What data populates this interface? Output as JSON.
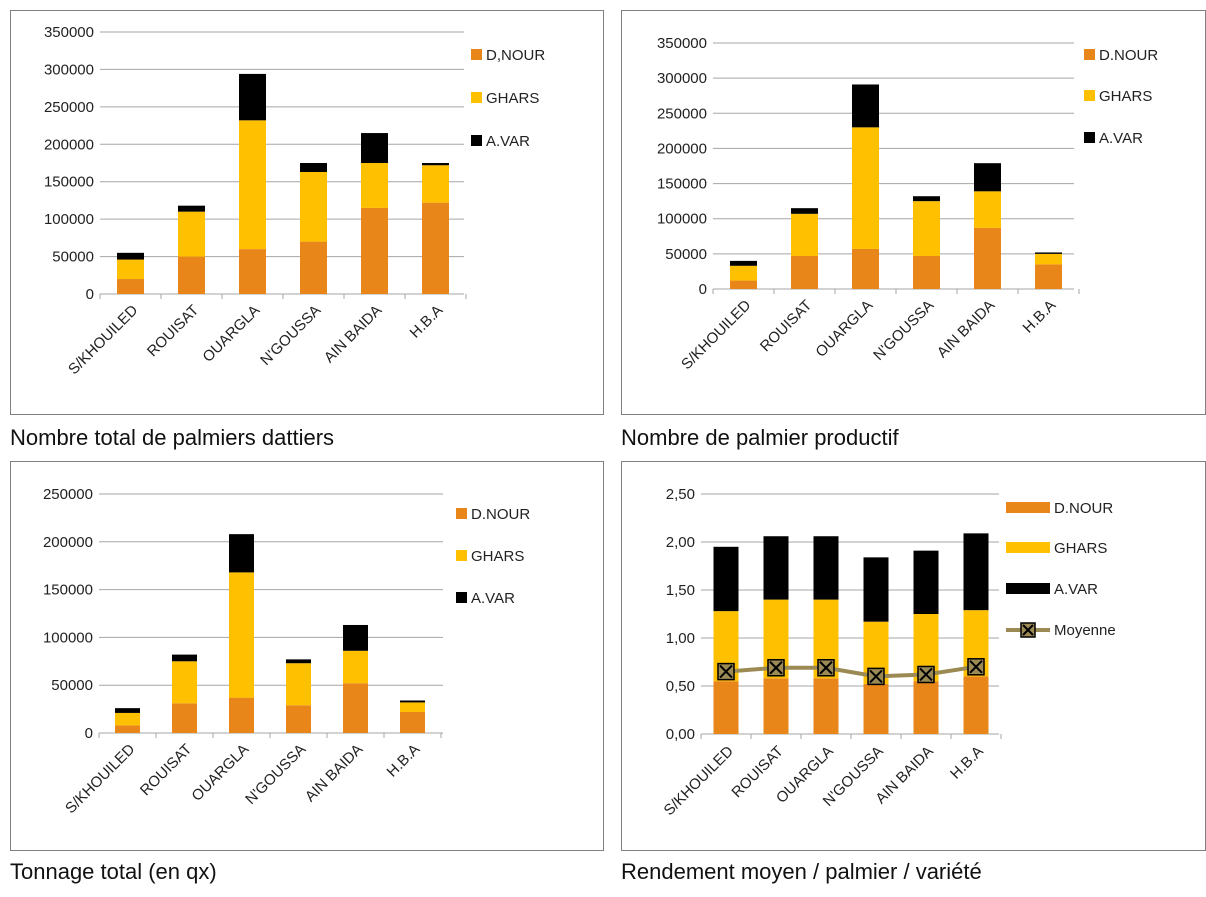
{
  "colors": {
    "D": "#E8861A",
    "G": "#FFC000",
    "A": "#000000",
    "line": "#9C8A55",
    "grid": "#A6A6A6"
  },
  "chart_data": [
    {
      "type": "bar",
      "stacked": true,
      "caption": "Nombre total de palmiers dattiers",
      "categories": [
        "S/KHOUILED",
        "ROUISAT",
        "OUARGLA",
        "N'GOUSSA",
        "AIN BAIDA",
        "H.B.A"
      ],
      "ylim": [
        0,
        350000
      ],
      "yticks": [
        "0",
        "50000",
        "100000",
        "150000",
        "200000",
        "250000",
        "300000",
        "350000"
      ],
      "legend_position": "right",
      "series": [
        {
          "name": "D,NOUR",
          "values": [
            20000,
            50000,
            60000,
            70000,
            115000,
            122000
          ]
        },
        {
          "name": "GHARS",
          "values": [
            26000,
            60000,
            172000,
            93000,
            60000,
            50000
          ]
        },
        {
          "name": "A.VAR",
          "values": [
            9000,
            8000,
            62000,
            12000,
            40000,
            3000
          ]
        }
      ]
    },
    {
      "type": "bar",
      "stacked": true,
      "caption": "Nombre de palmier productif",
      "categories": [
        "S/KHOUILED",
        "ROUISAT",
        "OUARGLA",
        "N'GOUSSA",
        "AIN BAIDA",
        "H.B.A"
      ],
      "ylim": [
        0,
        350000
      ],
      "yticks": [
        "0",
        "50000",
        "100000",
        "150000",
        "200000",
        "250000",
        "300000",
        "350000"
      ],
      "legend_position": "right",
      "series": [
        {
          "name": "D.NOUR",
          "values": [
            12000,
            47000,
            57000,
            47000,
            87000,
            35000
          ]
        },
        {
          "name": "GHARS",
          "values": [
            21000,
            60000,
            173000,
            78000,
            52000,
            15000
          ]
        },
        {
          "name": "A.VAR",
          "values": [
            7000,
            8000,
            61000,
            7000,
            40000,
            2000
          ]
        }
      ]
    },
    {
      "type": "bar",
      "stacked": true,
      "caption": "Tonnage total (en qx)",
      "categories": [
        "S/KHOUILED",
        "ROUISAT",
        "OUARGLA",
        "N'GOUSSA",
        "AIN BAIDA",
        "H.B.A"
      ],
      "ylim": [
        0,
        250000
      ],
      "yticks": [
        "0",
        "50000",
        "100000",
        "150000",
        "200000",
        "250000"
      ],
      "legend_position": "right",
      "series": [
        {
          "name": "D.NOUR",
          "values": [
            8000,
            31000,
            37000,
            29000,
            52000,
            22000
          ]
        },
        {
          "name": "GHARS",
          "values": [
            13000,
            44000,
            131000,
            44000,
            34000,
            10000
          ]
        },
        {
          "name": "A.VAR",
          "values": [
            5000,
            7000,
            40000,
            4000,
            27000,
            2000
          ]
        }
      ]
    },
    {
      "type": "bar",
      "stacked": true,
      "caption": "Rendement moyen / palmier / variété",
      "categories": [
        "S/KHOUILED",
        "ROUISAT",
        "OUARGLA",
        "N'GOUSSA",
        "AIN BAIDA",
        "H.B.A"
      ],
      "ylim": [
        0,
        2.5
      ],
      "yticks": [
        "0,00",
        "0,50",
        "1,00",
        "1,50",
        "2,00",
        "2,50"
      ],
      "legend_position": "right",
      "series": [
        {
          "name": "D.NOUR",
          "values": [
            0.55,
            0.58,
            0.58,
            0.52,
            0.55,
            0.6
          ]
        },
        {
          "name": "GHARS",
          "values": [
            0.73,
            0.82,
            0.82,
            0.65,
            0.7,
            0.69
          ]
        },
        {
          "name": "A.VAR",
          "values": [
            0.67,
            0.66,
            0.66,
            0.67,
            0.66,
            0.8
          ]
        }
      ],
      "line_series": {
        "name": "Moyenne",
        "values": [
          0.65,
          0.69,
          0.69,
          0.6,
          0.62,
          0.7
        ]
      }
    }
  ]
}
